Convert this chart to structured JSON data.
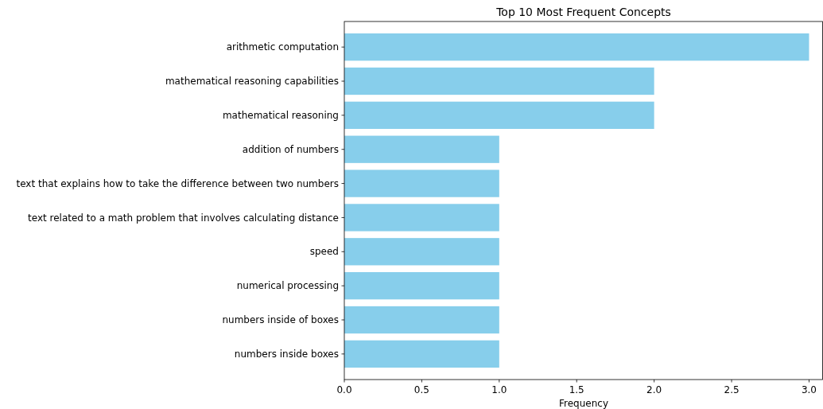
{
  "chart_data": {
    "type": "bar",
    "orientation": "horizontal",
    "title": "Top 10 Most Frequent Concepts",
    "xlabel": "Frequency",
    "categories": [
      "arithmetic computation",
      "mathematical reasoning capabilities",
      "mathematical reasoning",
      "addition of numbers",
      "text that explains how to take the difference between two numbers",
      "text related to a math problem that involves calculating distance",
      "speed",
      "numerical processing",
      "numbers inside of boxes",
      "numbers inside boxes"
    ],
    "values": [
      3,
      2,
      2,
      1,
      1,
      1,
      1,
      1,
      1,
      1
    ],
    "color": "#87ceeb",
    "xlim": [
      0,
      3.09
    ],
    "xticks": [
      {
        "value": 0,
        "label": "0.0"
      },
      {
        "value": 0.5,
        "label": "0.5"
      },
      {
        "value": 1,
        "label": "1.0"
      },
      {
        "value": 1.5,
        "label": "1.5"
      },
      {
        "value": 2,
        "label": "2.0"
      },
      {
        "value": 2.5,
        "label": "2.5"
      },
      {
        "value": 3,
        "label": "3.0"
      }
    ],
    "grid": false
  }
}
